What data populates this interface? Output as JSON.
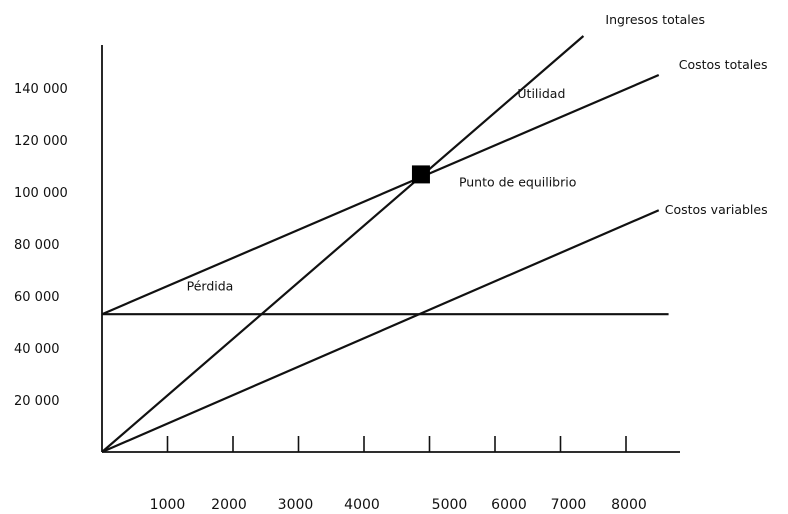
{
  "chart_data": {
    "type": "line",
    "title": "",
    "xlabel": "",
    "ylabel": "",
    "xlim": [
      0,
      8600
    ],
    "ylim": [
      0,
      150000
    ],
    "grid": false,
    "x_ticks": [
      1000,
      2000,
      3000,
      4000,
      5000,
      6000,
      7000,
      8000
    ],
    "x_tick_labels": [
      "1000",
      "2000",
      "3000",
      "4000",
      "5000",
      "6000",
      "7000",
      "8000"
    ],
    "y_ticks": [
      20000,
      40000,
      60000,
      80000,
      100000,
      120000,
      140000
    ],
    "y_tick_labels": [
      "20 000",
      "40 000",
      "60 000",
      "80 000",
      "100 000",
      "120 000",
      "140 000"
    ],
    "series": [
      {
        "name": "Ingresos totales",
        "x": [
          0,
          7350
        ],
        "y": [
          0,
          160000
        ]
      },
      {
        "name": "Costos totales",
        "x": [
          0,
          8500
        ],
        "y": [
          53000,
          145000
        ]
      },
      {
        "name": "Costos variables",
        "x": [
          0,
          8500
        ],
        "y": [
          0,
          93000
        ]
      },
      {
        "name": "",
        "x": [
          0,
          8650
        ],
        "y": [
          53000,
          53000
        ]
      }
    ],
    "break_even": {
      "label": "Punto de equilibrio",
      "x": 4900,
      "y": 106000
    },
    "annotations": [
      {
        "text": "Utilidad",
        "x": 6800,
        "y": 138000
      },
      {
        "text": "Pérdida",
        "x": 1750,
        "y": 64000
      }
    ]
  }
}
